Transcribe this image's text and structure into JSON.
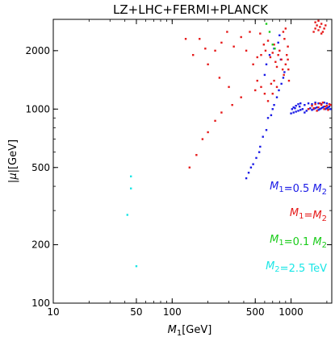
{
  "chart_data": {
    "type": "scatter",
    "title": "LZ+LHC+FERMI+PLANCK",
    "xlabel": {
      "main": "M",
      "sub": "1",
      "unit": "[GeV]"
    },
    "ylabel": {
      "main": "|μ|",
      "unit": "[GeV]"
    },
    "x_scale": "log",
    "y_scale": "log",
    "xlim": [
      10,
      2200
    ],
    "ylim": [
      100,
      2900
    ],
    "x_ticks": [
      {
        "value": 10,
        "label": "10"
      },
      {
        "value": 50,
        "label": "50"
      },
      {
        "value": 100,
        "label": "100"
      },
      {
        "value": 500,
        "label": "500"
      },
      {
        "value": 1000,
        "label": "1000"
      }
    ],
    "y_ticks": [
      {
        "value": 100,
        "label": "100"
      },
      {
        "value": 200,
        "label": "200"
      },
      {
        "value": 500,
        "label": "500"
      },
      {
        "value": 1000,
        "label": "1000"
      },
      {
        "value": 2000,
        "label": "2000"
      }
    ],
    "grid": false,
    "legend_position": "right",
    "series": [
      {
        "name": "M1=0.5 M2",
        "legend": [
          {
            "t": "M",
            "sub": "1"
          },
          {
            "t": "=0.5 "
          },
          {
            "t": "M",
            "sub": "2"
          }
        ],
        "color": "#1a1ae6",
        "points": [
          [
            420,
            440
          ],
          [
            440,
            470
          ],
          [
            460,
            500
          ],
          [
            480,
            520
          ],
          [
            510,
            560
          ],
          [
            540,
            600
          ],
          [
            550,
            640
          ],
          [
            580,
            720
          ],
          [
            620,
            780
          ],
          [
            640,
            900
          ],
          [
            680,
            930
          ],
          [
            700,
            1000
          ],
          [
            720,
            1050
          ],
          [
            760,
            1150
          ],
          [
            790,
            1250
          ],
          [
            830,
            1350
          ],
          [
            860,
            1450
          ],
          [
            880,
            1550
          ],
          [
            600,
            1500
          ],
          [
            620,
            1700
          ],
          [
            660,
            1900
          ],
          [
            720,
            2050
          ],
          [
            780,
            2200
          ],
          [
            820,
            1800
          ],
          [
            800,
            2400
          ],
          [
            1000,
            950
          ],
          [
            1050,
            960
          ],
          [
            1100,
            970
          ],
          [
            1150,
            980
          ],
          [
            1200,
            990
          ],
          [
            1250,
            1000
          ],
          [
            1300,
            960
          ],
          [
            1350,
            980
          ],
          [
            1400,
            1000
          ],
          [
            1450,
            1010
          ],
          [
            1500,
            990
          ],
          [
            1550,
            1000
          ],
          [
            1600,
            1010
          ],
          [
            1650,
            1020
          ],
          [
            1700,
            990
          ],
          [
            1750,
            1000
          ],
          [
            1800,
            1010
          ],
          [
            1850,
            1020
          ],
          [
            1900,
            1030
          ],
          [
            1950,
            1000
          ],
          [
            2000,
            1010
          ],
          [
            2050,
            1020
          ],
          [
            2100,
            1030
          ],
          [
            2150,
            1000
          ],
          [
            1050,
            1020
          ],
          [
            1100,
            1040
          ],
          [
            1150,
            1060
          ],
          [
            1200,
            1070
          ],
          [
            1300,
            1050
          ],
          [
            1400,
            1070
          ],
          [
            1500,
            1060
          ],
          [
            1600,
            1080
          ],
          [
            1700,
            1070
          ],
          [
            1800,
            1060
          ],
          [
            1900,
            1080
          ],
          [
            2000,
            1070
          ],
          [
            2100,
            1060
          ],
          [
            1020,
            1000
          ],
          [
            1080,
            1010
          ],
          [
            1180,
            1030
          ]
        ]
      },
      {
        "name": "M1=M2",
        "legend": [
          {
            "t": "M",
            "sub": "1"
          },
          {
            "t": "="
          },
          {
            "t": "M",
            "sub": "2"
          }
        ],
        "color": "#e61a1a",
        "points": [
          [
            140,
            500
          ],
          [
            160,
            580
          ],
          [
            180,
            700
          ],
          [
            200,
            760
          ],
          [
            230,
            870
          ],
          [
            260,
            960
          ],
          [
            320,
            1050
          ],
          [
            380,
            1150
          ],
          [
            300,
            1300
          ],
          [
            250,
            1450
          ],
          [
            200,
            1700
          ],
          [
            150,
            1900
          ],
          [
            130,
            2300
          ],
          [
            190,
            2050
          ],
          [
            170,
            2300
          ],
          [
            230,
            2000
          ],
          [
            260,
            2200
          ],
          [
            290,
            2500
          ],
          [
            330,
            2100
          ],
          [
            380,
            2350
          ],
          [
            420,
            2000
          ],
          [
            450,
            2500
          ],
          [
            480,
            1700
          ],
          [
            520,
            1850
          ],
          [
            550,
            2450
          ],
          [
            560,
            1900
          ],
          [
            590,
            2150
          ],
          [
            610,
            2000
          ],
          [
            640,
            2250
          ],
          [
            670,
            1850
          ],
          [
            700,
            1950
          ],
          [
            720,
            2150
          ],
          [
            740,
            1750
          ],
          [
            760,
            1650
          ],
          [
            780,
            1900
          ],
          [
            800,
            2000
          ],
          [
            830,
            1800
          ],
          [
            850,
            1600
          ],
          [
            870,
            1500
          ],
          [
            900,
            1700
          ],
          [
            920,
            1900
          ],
          [
            940,
            2100
          ],
          [
            880,
            2300
          ],
          [
            860,
            2500
          ],
          [
            900,
            2600
          ],
          [
            940,
            1800
          ],
          [
            950,
            1600
          ],
          [
            960,
            1400
          ],
          [
            680,
            1350
          ],
          [
            720,
            1400
          ],
          [
            600,
            1200
          ],
          [
            560,
            1300
          ],
          [
            520,
            1400
          ],
          [
            500,
            1250
          ],
          [
            640,
            1100
          ],
          [
            700,
            1200
          ],
          [
            760,
            1300
          ],
          [
            1550,
            2500
          ],
          [
            1600,
            2600
          ],
          [
            1650,
            2700
          ],
          [
            1700,
            2550
          ],
          [
            1750,
            2650
          ],
          [
            1800,
            2750
          ],
          [
            1850,
            2500
          ],
          [
            1900,
            2600
          ],
          [
            1950,
            2700
          ],
          [
            1600,
            2800
          ],
          [
            1700,
            2850
          ],
          [
            1800,
            2450
          ],
          [
            1400,
            1000
          ],
          [
            1500,
            1040
          ],
          [
            1600,
            1060
          ],
          [
            1700,
            1020
          ],
          [
            1800,
            1050
          ],
          [
            1900,
            1000
          ],
          [
            2000,
            1040
          ],
          [
            2100,
            1060
          ],
          [
            1650,
            980
          ],
          [
            1750,
            1070
          ],
          [
            1950,
            1030
          ],
          [
            2050,
            990
          ],
          [
            2150,
            1050
          ],
          [
            1850,
            1080
          ],
          [
            1550,
            1010
          ]
        ]
      },
      {
        "name": "M1=0.1 M2",
        "legend": [
          {
            "t": "M",
            "sub": "1"
          },
          {
            "t": "=0.1 "
          },
          {
            "t": "M",
            "sub": "2"
          }
        ],
        "color": "#1acc1a",
        "points": [
          [
            620,
            2750
          ],
          [
            660,
            2500
          ],
          [
            700,
            2150
          ],
          [
            730,
            2050
          ]
        ]
      },
      {
        "name": "M2=2.5 TeV",
        "legend": [
          {
            "t": "M",
            "sub": "2"
          },
          {
            "t": "=2.5 TeV"
          }
        ],
        "color": "#1ae6e6",
        "points": [
          [
            45,
            450
          ],
          [
            45,
            390
          ],
          [
            42,
            285
          ],
          [
            50,
            155
          ]
        ]
      }
    ]
  }
}
